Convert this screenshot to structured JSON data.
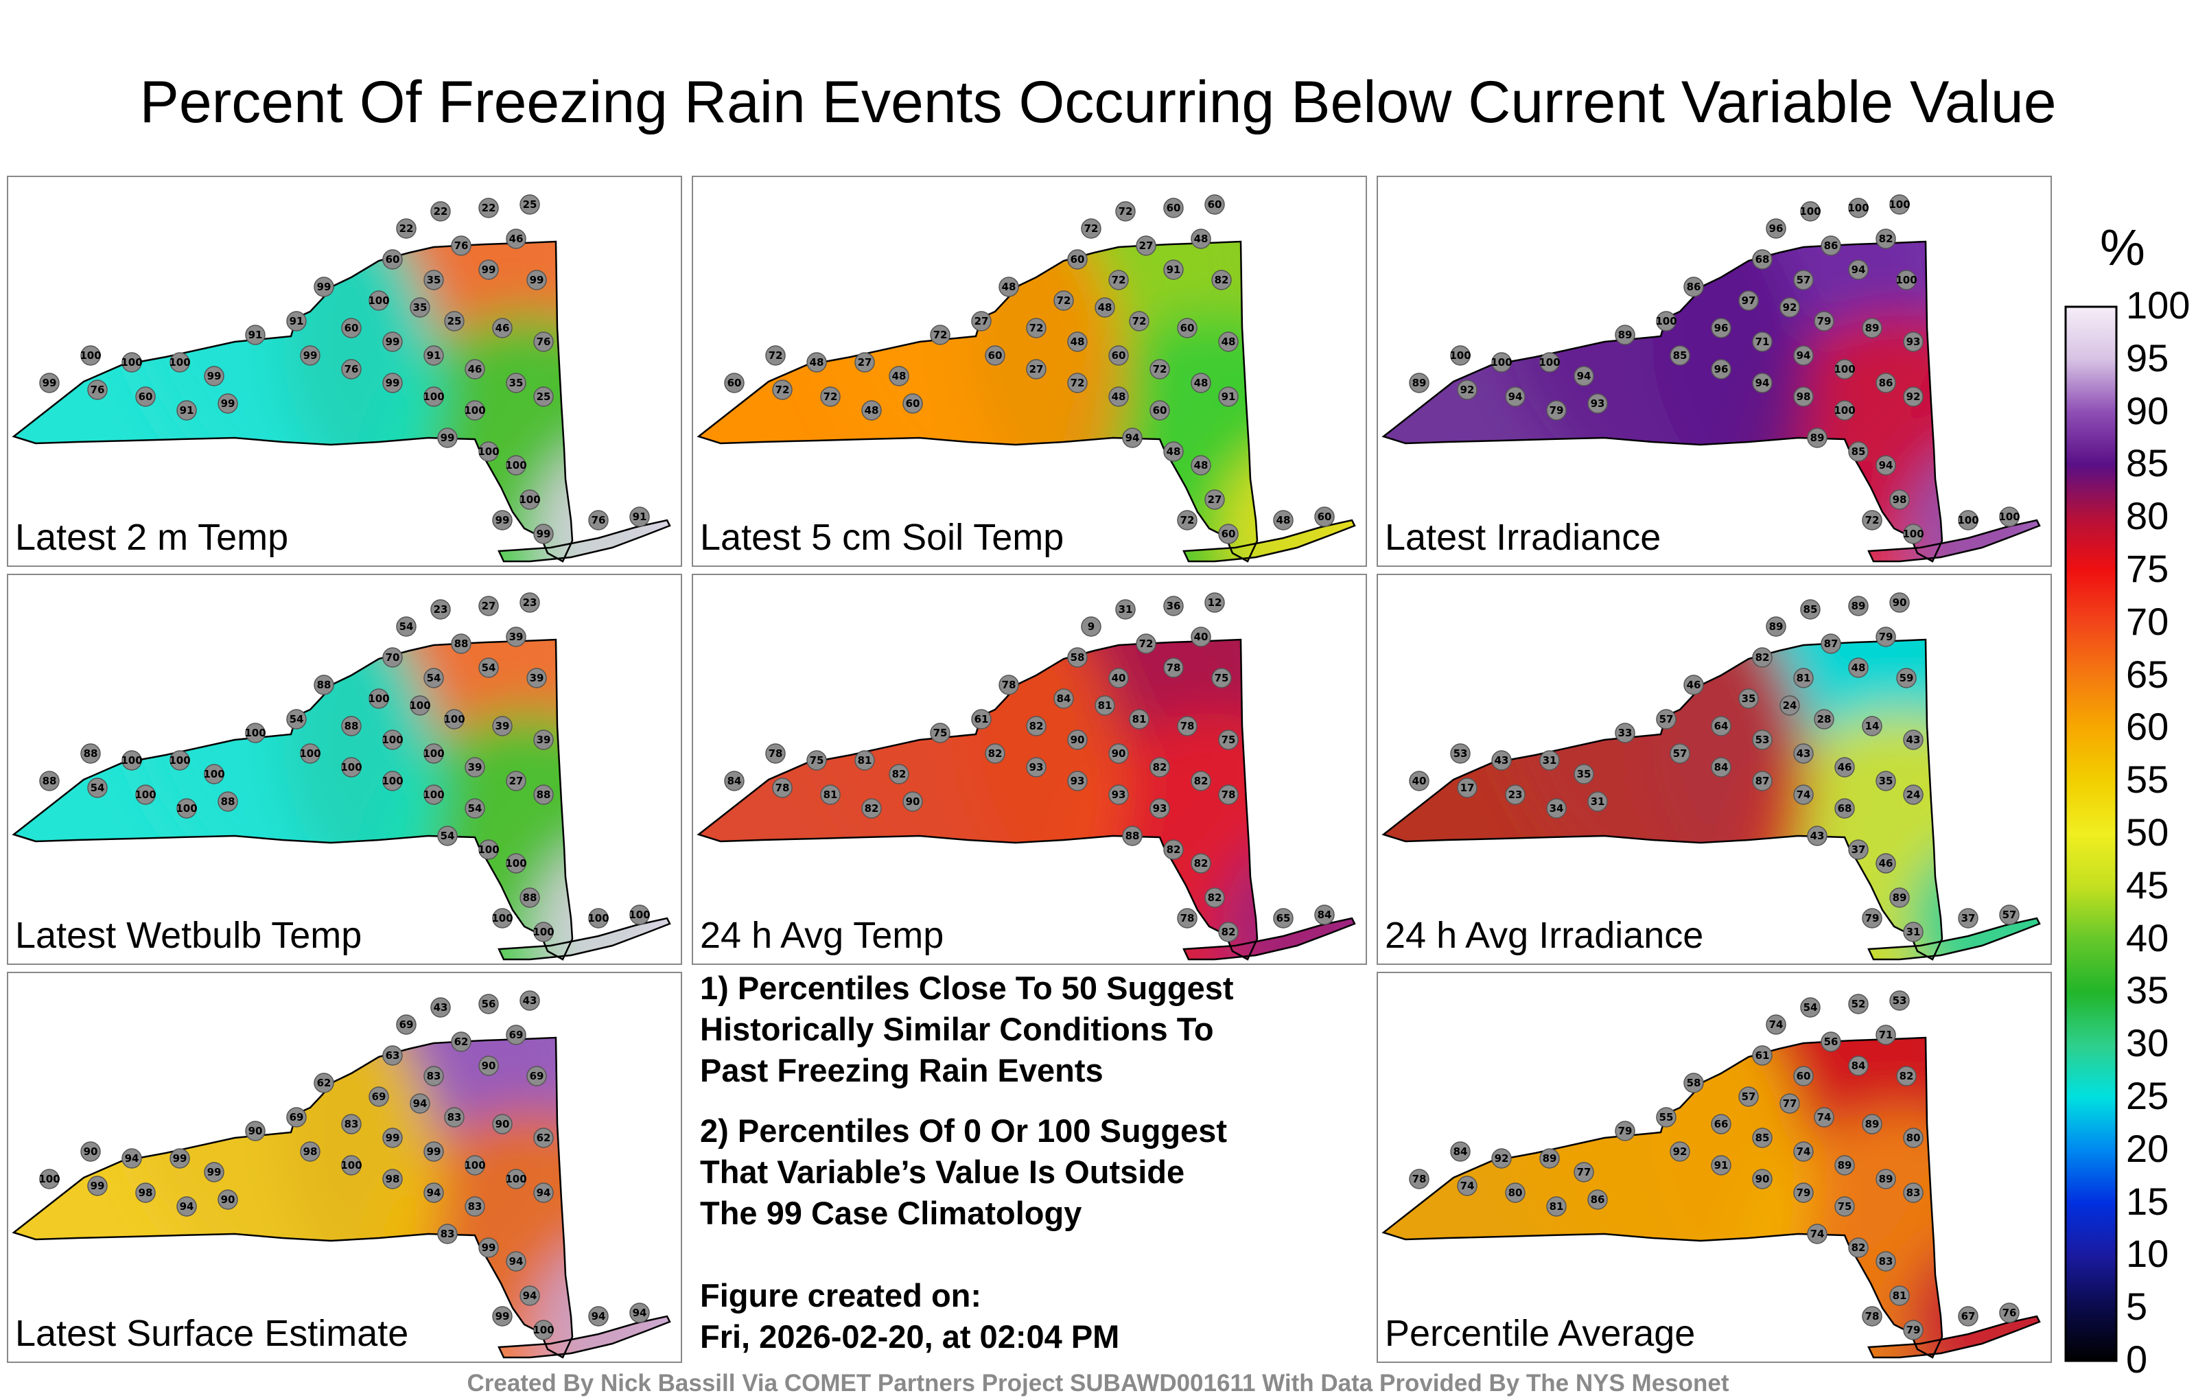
{
  "title": "Percent Of Freezing Rain Events Occurring Below Current Variable Value",
  "panels": [
    {
      "label": "Latest 2 m Temp",
      "colors": [
        "#eee2f2",
        "#e4d4ee",
        "#f06010",
        "#33cc33",
        "#00e5d0"
      ]
    },
    {
      "label": "Latest 5 cm Soil Temp",
      "colors": [
        "#f7b800",
        "#f0e020",
        "#7acc22",
        "#33cc33",
        "#ff8a00"
      ]
    },
    {
      "label": "Latest Irradiance",
      "colors": [
        "#eee2f2",
        "#8f56b8",
        "#6a1fa0",
        "#d81030",
        "#5a168a"
      ]
    },
    {
      "label": "Latest Wetbulb Temp",
      "colors": [
        "#eee2f2",
        "#e4d4ee",
        "#f06010",
        "#33cc33",
        "#00e5d0"
      ]
    },
    {
      "label": "24 h Avg Temp",
      "colors": [
        "#7a2bb0",
        "#9a2480",
        "#b01040",
        "#e8202a",
        "#ee5018"
      ]
    },
    {
      "label": "24 h Avg Irradiance",
      "colors": [
        "#33cc33",
        "#22cfa0",
        "#00d8e0",
        "#e9e020",
        "#d0181f"
      ]
    },
    {
      "label": "Latest Surface Estimate",
      "colors": [
        "#eee2f2",
        "#c8a8dc",
        "#8e4fb5",
        "#f07010",
        "#f2c800"
      ]
    },
    {
      "label": "Percentile Average",
      "colors": [
        "#a01845",
        "#c71a34",
        "#d5181c",
        "#f08a10",
        "#f4b800"
      ]
    }
  ],
  "notes": {
    "line1": "1) Percentiles Close To 50 Suggest",
    "line2": "Historically Similar Conditions To",
    "line3": "Past Freezing Rain Events",
    "line4": "2) Percentiles Of 0 Or 100 Suggest",
    "line5": "That Variable’s Value Is Outside",
    "line6": "The 99 Case Climatology"
  },
  "created": {
    "label": "Figure created on:",
    "date": "Fri, 2026-02-20, at 02:04 PM"
  },
  "footer": "Created By Nick Bassill Via COMET Partners Project SUBAWD001611 With Data Provided By The NYS Mesonet",
  "colorbar": {
    "unit": "%",
    "ticks": [
      "100",
      "95",
      "90",
      "85",
      "80",
      "75",
      "70",
      "65",
      "60",
      "55",
      "50",
      "45",
      "40",
      "35",
      "30",
      "25",
      "20",
      "15",
      "10",
      "5",
      "0"
    ]
  },
  "stations": [
    [
      "22",
      "22",
      "25",
      "22",
      "76",
      "46",
      "60",
      "35",
      "99",
      "99",
      "99",
      "100",
      "35",
      "25",
      "46",
      "76",
      "91",
      "60",
      "99",
      "91",
      "46",
      "35",
      "25",
      "91",
      "99",
      "76",
      "99",
      "100",
      "100",
      "100",
      "100",
      "100",
      "99",
      "99",
      "76",
      "60",
      "91",
      "99",
      "99",
      "100",
      "100",
      "100",
      "99",
      "99",
      "76",
      "91"
    ],
    [
      "72",
      "60",
      "60",
      "72",
      "27",
      "48",
      "60",
      "72",
      "91",
      "82",
      "48",
      "72",
      "48",
      "72",
      "60",
      "48",
      "27",
      "72",
      "48",
      "60",
      "72",
      "48",
      "91",
      "72",
      "60",
      "27",
      "72",
      "48",
      "60",
      "72",
      "48",
      "27",
      "48",
      "60",
      "72",
      "72",
      "48",
      "60",
      "94",
      "48",
      "48",
      "27",
      "72",
      "60",
      "48",
      "60"
    ],
    [
      "100",
      "100",
      "100",
      "96",
      "86",
      "82",
      "68",
      "57",
      "94",
      "100",
      "86",
      "97",
      "92",
      "79",
      "89",
      "93",
      "100",
      "96",
      "71",
      "94",
      "100",
      "86",
      "92",
      "89",
      "85",
      "96",
      "94",
      "98",
      "100",
      "100",
      "100",
      "100",
      "94",
      "89",
      "92",
      "94",
      "79",
      "93",
      "89",
      "85",
      "94",
      "98",
      "72",
      "100",
      "100",
      "100"
    ],
    [
      "23",
      "27",
      "23",
      "54",
      "88",
      "39",
      "70",
      "54",
      "54",
      "39",
      "88",
      "100",
      "100",
      "100",
      "39",
      "39",
      "54",
      "88",
      "100",
      "100",
      "39",
      "27",
      "88",
      "100",
      "100",
      "100",
      "100",
      "100",
      "54",
      "88",
      "100",
      "100",
      "100",
      "88",
      "54",
      "100",
      "100",
      "88",
      "54",
      "100",
      "100",
      "88",
      "100",
      "100",
      "100",
      "100"
    ],
    [
      "31",
      "36",
      "12",
      "9",
      "72",
      "40",
      "58",
      "40",
      "78",
      "75",
      "78",
      "84",
      "81",
      "81",
      "78",
      "75",
      "61",
      "82",
      "90",
      "90",
      "82",
      "82",
      "78",
      "75",
      "82",
      "93",
      "93",
      "93",
      "93",
      "78",
      "75",
      "81",
      "82",
      "84",
      "78",
      "81",
      "82",
      "90",
      "88",
      "82",
      "82",
      "82",
      "78",
      "82",
      "65",
      "84"
    ],
    [
      "85",
      "89",
      "90",
      "89",
      "87",
      "79",
      "82",
      "81",
      "48",
      "59",
      "46",
      "35",
      "24",
      "28",
      "14",
      "43",
      "57",
      "64",
      "53",
      "43",
      "46",
      "35",
      "24",
      "33",
      "57",
      "84",
      "87",
      "74",
      "68",
      "53",
      "43",
      "31",
      "35",
      "40",
      "17",
      "23",
      "34",
      "31",
      "43",
      "37",
      "46",
      "89",
      "79",
      "31",
      "37",
      "57"
    ],
    [
      "43",
      "56",
      "43",
      "69",
      "62",
      "69",
      "63",
      "83",
      "90",
      "69",
      "62",
      "69",
      "94",
      "83",
      "90",
      "62",
      "69",
      "83",
      "99",
      "99",
      "100",
      "100",
      "94",
      "90",
      "98",
      "100",
      "98",
      "94",
      "83",
      "90",
      "94",
      "99",
      "99",
      "100",
      "99",
      "98",
      "94",
      "90",
      "83",
      "99",
      "94",
      "94",
      "99",
      "100",
      "94",
      "94"
    ],
    [
      "54",
      "52",
      "53",
      "74",
      "56",
      "71",
      "61",
      "60",
      "84",
      "82",
      "58",
      "57",
      "77",
      "74",
      "89",
      "80",
      "55",
      "66",
      "85",
      "74",
      "89",
      "89",
      "83",
      "79",
      "92",
      "91",
      "90",
      "79",
      "75",
      "84",
      "92",
      "89",
      "77",
      "78",
      "74",
      "80",
      "81",
      "86",
      "74",
      "82",
      "83",
      "81",
      "78",
      "79",
      "67",
      "76"
    ]
  ]
}
